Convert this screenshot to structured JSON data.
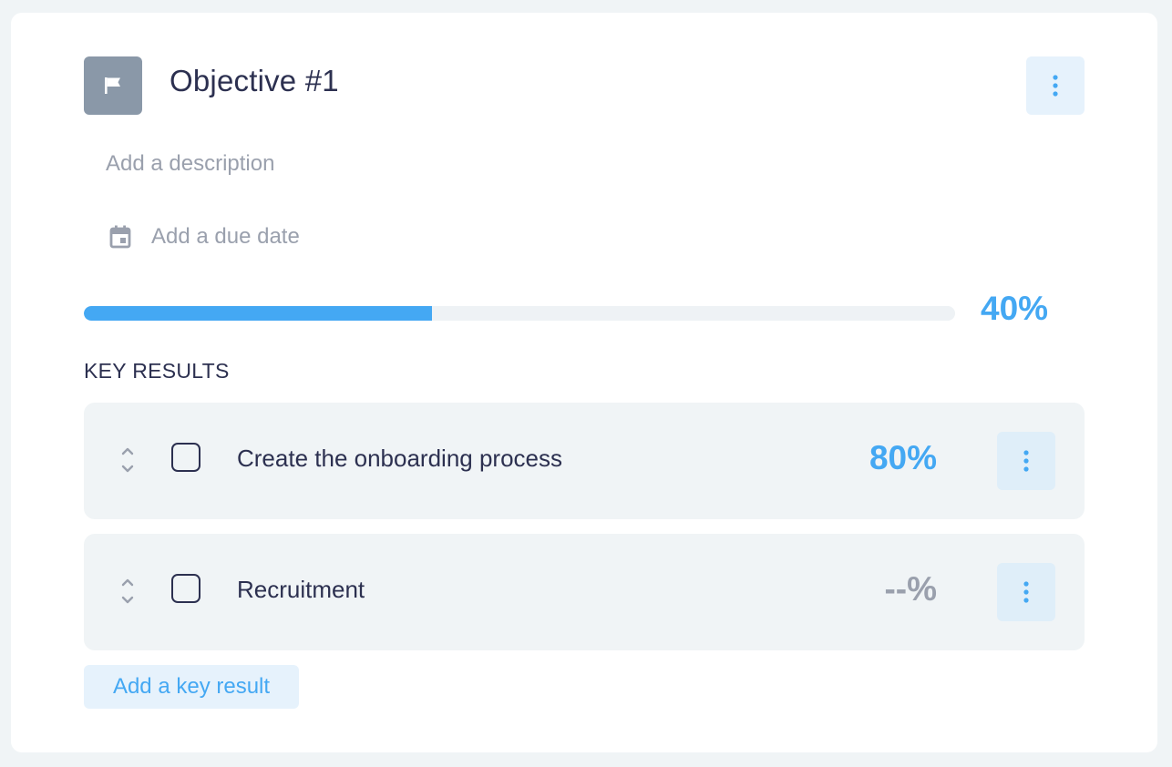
{
  "objective": {
    "title": "Objective #1",
    "description_placeholder": "Add a description",
    "due_date_placeholder": "Add a due date",
    "progress_label": "40%",
    "progress_value": 0.4,
    "icons": {
      "objective": "flag-icon",
      "menu": "kebab-menu-icon",
      "due": "calendar-icon"
    }
  },
  "key_results": {
    "heading": "KEY RESULTS",
    "items": [
      {
        "label": "Create the onboarding process",
        "percent": "80%",
        "percent_color": "#44a8f3",
        "checked": false
      },
      {
        "label": "Recruitment",
        "percent": "--%",
        "percent_color": "#9aa0ad",
        "checked": false
      }
    ],
    "add_label": "Add a key result"
  },
  "colors": {
    "accent": "#44a8f3",
    "text": "#2c3050",
    "muted": "#9aa0ad",
    "flag_bg": "#8a98a8"
  }
}
